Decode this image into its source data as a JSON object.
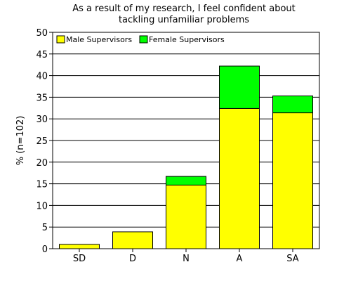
{
  "chart_data": {
    "type": "bar",
    "stacked": true,
    "title": [
      "As a result of my research, I feel confident about",
      "tackling unfamiliar problems"
    ],
    "xlabel": "",
    "ylabel": "% (n=102)",
    "categories": [
      "SD",
      "D",
      "N",
      "A",
      "SA"
    ],
    "series": [
      {
        "name": "Male Supervisors",
        "color": "#ffff00",
        "values": [
          1.0,
          3.9,
          14.7,
          32.4,
          31.4
        ]
      },
      {
        "name": "Female Supervisors",
        "color": "#00ff00",
        "values": [
          0,
          0,
          2.0,
          9.8,
          3.9
        ]
      }
    ],
    "ylim": [
      0,
      50
    ],
    "yticks": [
      0,
      5,
      10,
      15,
      20,
      25,
      30,
      35,
      40,
      45,
      50
    ],
    "grid": true,
    "legend_position": "top-left"
  }
}
